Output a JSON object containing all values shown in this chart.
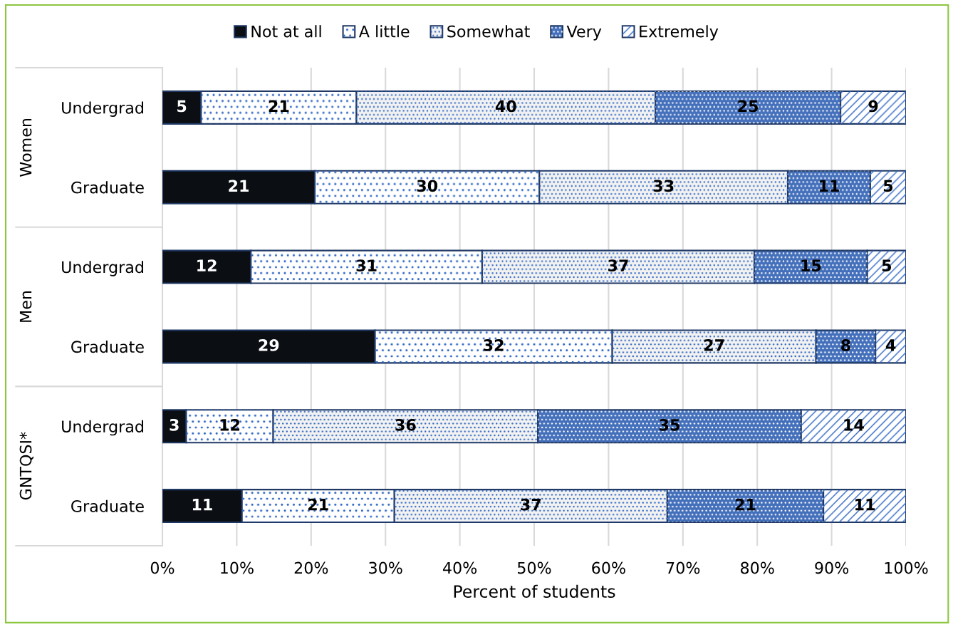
{
  "chart_data": {
    "type": "bar",
    "orientation": "horizontal",
    "stacked": true,
    "categories": [
      "Undergrad",
      "Graduate",
      "Undergrad",
      "Graduate",
      "Undergrad",
      "Graduate"
    ],
    "annotations": [
      "Women",
      "Men",
      "GNTQSI*"
    ],
    "xlabel": "Percent of students",
    "xlim": [
      0,
      100
    ],
    "xticks": [
      {
        "value": 0,
        "label": "0%"
      },
      {
        "value": 10,
        "label": "10%"
      },
      {
        "value": 20,
        "label": "20%"
      },
      {
        "value": 30,
        "label": "30%"
      },
      {
        "value": 40,
        "label": "40%"
      },
      {
        "value": 50,
        "label": "50%"
      },
      {
        "value": 60,
        "label": "60%"
      },
      {
        "value": 70,
        "label": "70%"
      },
      {
        "value": 80,
        "label": "80%"
      },
      {
        "value": 90,
        "label": "90%"
      },
      {
        "value": 100,
        "label": "100%"
      }
    ],
    "grid": "x",
    "legend": "top",
    "series": [
      {
        "name": "Not at all",
        "color": "#0b0f14",
        "values": [
          5.2,
          20.5,
          11.9,
          28.6,
          3.2,
          10.7
        ],
        "value_labels": [
          "5",
          "21",
          "12",
          "29",
          "3",
          "11"
        ]
      },
      {
        "name": "A little",
        "color": "#ffffff",
        "values": [
          20.9,
          30.2,
          31.1,
          31.9,
          11.7,
          20.5
        ],
        "value_labels": [
          "21",
          "30",
          "31",
          "32",
          "12",
          "21"
        ]
      },
      {
        "name": "Somewhat",
        "color": "#f2f2f2",
        "values": [
          40.2,
          33.4,
          36.6,
          27.4,
          35.6,
          36.7
        ],
        "value_labels": [
          "40",
          "33",
          "37",
          "27",
          "36",
          "37"
        ]
      },
      {
        "name": "Very",
        "color": "#4470bb",
        "values": [
          24.9,
          11.1,
          15.2,
          8.0,
          35.4,
          21.0
        ],
        "value_labels": [
          "25",
          "11",
          "15",
          "8",
          "35",
          "21"
        ]
      },
      {
        "name": "Extremely",
        "color": "#ffffff",
        "values": [
          8.8,
          4.8,
          5.2,
          4.1,
          14.1,
          11.1
        ],
        "value_labels": [
          "9",
          "5",
          "5",
          "4",
          "14",
          "11"
        ]
      }
    ]
  }
}
